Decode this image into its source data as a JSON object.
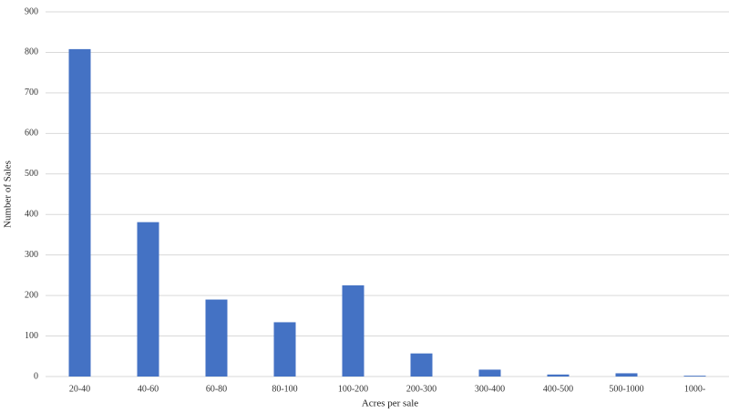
{
  "chart_data": {
    "type": "bar",
    "x_label": "Acres per sale",
    "y_label": "Number of Sales",
    "categories": [
      "20-40",
      "40-60",
      "60-80",
      "80-100",
      "100-200",
      "200-300",
      "300-400",
      "400-500",
      "500-1000",
      "1000-"
    ],
    "values": [
      808,
      381,
      190,
      134,
      225,
      57,
      17,
      5,
      8,
      2
    ],
    "color": "#4472c4",
    "ylim": [
      0,
      900
    ],
    "yticks": [
      0,
      100,
      200,
      300,
      400,
      500,
      600,
      700,
      800,
      900
    ],
    "grid": true
  }
}
